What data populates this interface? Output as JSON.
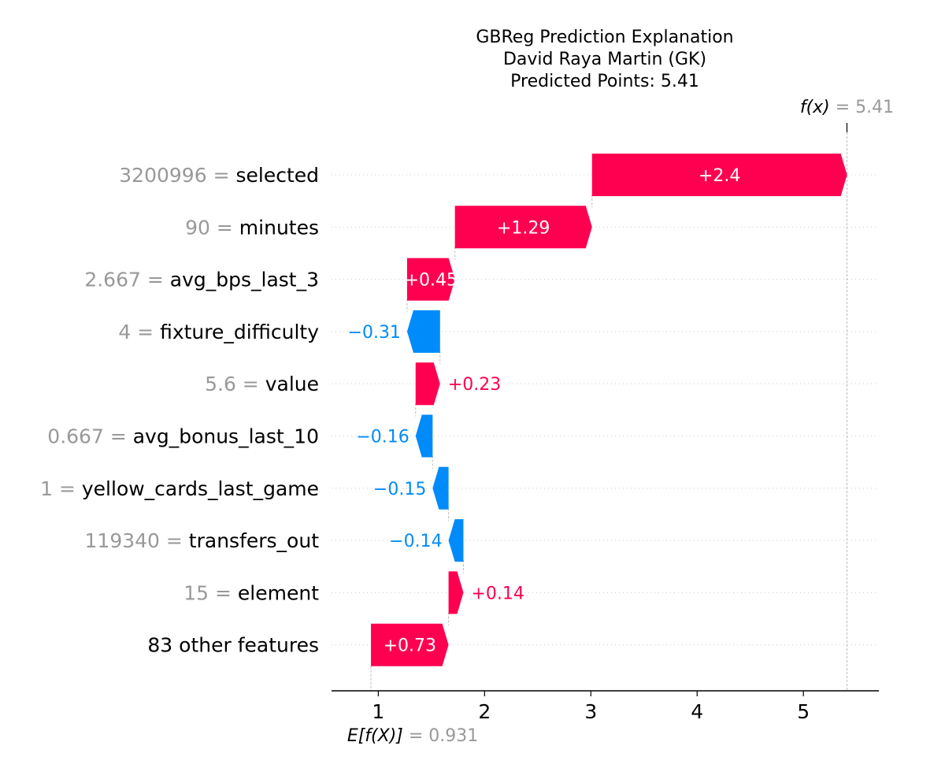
{
  "chart_data": {
    "type": "waterfall",
    "title_lines": [
      "GBReg Prediction Explanation",
      "David Raya Martin (GK)",
      "Predicted Points: 5.41"
    ],
    "base_value": 0.931,
    "base_label": {
      "expr": "E[f(X)]",
      "eq": " = 0.931"
    },
    "output_value": 5.41,
    "output_label": {
      "expr": "f(x)",
      "eq": " = 5.41"
    },
    "xlim": [
      0.56,
      5.71
    ],
    "xticks": [
      1,
      2,
      3,
      4,
      5
    ],
    "xtick_labels": [
      "1",
      "2",
      "3",
      "4",
      "5"
    ],
    "features": [
      {
        "value": "3200996",
        "name": "selected",
        "shap": 2.4,
        "label": "+2.4"
      },
      {
        "value": "90",
        "name": "minutes",
        "shap": 1.29,
        "label": "+1.29"
      },
      {
        "value": "2.667",
        "name": "avg_bps_last_3",
        "shap": 0.45,
        "label": "+0.45"
      },
      {
        "value": "4",
        "name": "fixture_difficulty",
        "shap": -0.31,
        "label": "−0.31"
      },
      {
        "value": "5.6",
        "name": "value",
        "shap": 0.23,
        "label": "+0.23"
      },
      {
        "value": "0.667",
        "name": "avg_bonus_last_10",
        "shap": -0.16,
        "label": "−0.16"
      },
      {
        "value": "1",
        "name": "yellow_cards_last_game",
        "shap": -0.15,
        "label": "−0.15"
      },
      {
        "value": "119340",
        "name": "transfers_out",
        "shap": -0.14,
        "label": "−0.14"
      },
      {
        "value": "15",
        "name": "element",
        "shap": 0.14,
        "label": "+0.14"
      },
      {
        "value": "",
        "name": "83 other features",
        "shap": 0.73,
        "label": "+0.73"
      }
    ],
    "colors": {
      "positive": "#ff0051",
      "negative": "#008bfb",
      "muted": "#999999"
    }
  }
}
